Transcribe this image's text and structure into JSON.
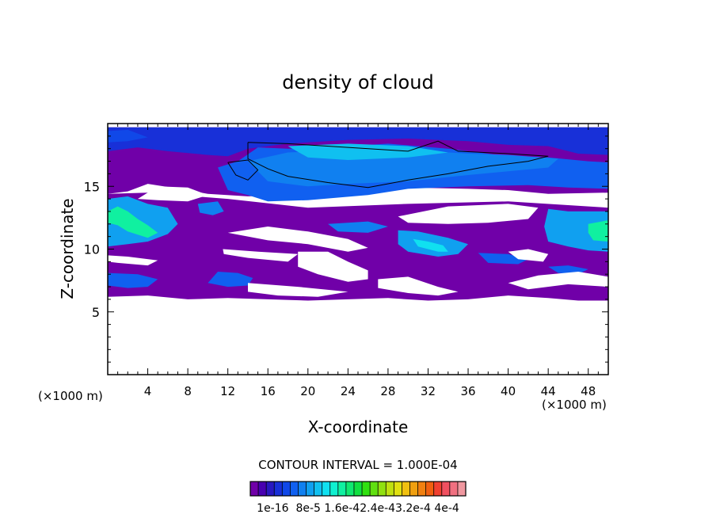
{
  "chart_data": {
    "type": "heatmap",
    "title": "density of cloud",
    "xlabel": "X-coordinate",
    "ylabel": "Z-coordinate",
    "x_unit_left": "(×1000 m)",
    "x_unit_right": "(×1000 m)",
    "xlim": [
      0,
      50
    ],
    "ylim": [
      0,
      20
    ],
    "x_ticks": [
      4,
      8,
      12,
      16,
      20,
      24,
      28,
      32,
      36,
      40,
      44,
      48
    ],
    "y_ticks": [
      5,
      10,
      15
    ],
    "contour_interval_text": "CONTOUR INTERVAL = 1.000E-04",
    "colorbar_labels": [
      "1e-16",
      "8e-5",
      "1.6e-4",
      "2.4e-4",
      "3.2e-4",
      "4e-4"
    ],
    "colorbar_label_text": "1e-16  8e-5 1.6e-42.4e-43.2e-4 4e-4",
    "colors": [
      "#7000a8",
      "#4800b0",
      "#2818c0",
      "#1830d8",
      "#1048e8",
      "#1060f0",
      "#1080f0",
      "#10a0f0",
      "#10c0f0",
      "#10e0f0",
      "#10f0d0",
      "#10f0a0",
      "#10e870",
      "#10e040",
      "#30e010",
      "#60e010",
      "#90e010",
      "#c0e010",
      "#e0e010",
      "#f0c010",
      "#f0a010",
      "#f08010",
      "#f06010",
      "#f04030",
      "#f05060",
      "#f07080",
      "#f098a0"
    ],
    "regions": [
      {
        "level": 0,
        "shape": [
          [
            0,
            14.4
          ],
          [
            2,
            14.6
          ],
          [
            4,
            15.2
          ],
          [
            8,
            14.7
          ],
          [
            10,
            14.4
          ],
          [
            14,
            14.2
          ],
          [
            18,
            14.3
          ],
          [
            24,
            14.8
          ],
          [
            30,
            14.9
          ],
          [
            36,
            14.8
          ],
          [
            40,
            14.7
          ],
          [
            44,
            14.4
          ],
          [
            50,
            14.5
          ],
          [
            50,
            19.7
          ],
          [
            0,
            19.7
          ]
        ]
      },
      {
        "level": 0,
        "shape": [
          [
            0,
            14.4
          ],
          [
            4,
            14.5
          ],
          [
            12,
            14.0
          ],
          [
            20,
            13.3
          ],
          [
            30,
            13.6
          ],
          [
            40,
            13.8
          ],
          [
            50,
            13.3
          ],
          [
            50,
            5.9
          ],
          [
            47,
            5.9
          ],
          [
            44,
            6.1
          ],
          [
            40,
            6.3
          ],
          [
            36,
            6.0
          ],
          [
            32,
            5.9
          ],
          [
            28,
            6.1
          ],
          [
            24,
            6.0
          ],
          [
            20,
            5.9
          ],
          [
            16,
            6.0
          ],
          [
            12,
            6.1
          ],
          [
            8,
            6.0
          ],
          [
            4,
            6.3
          ],
          [
            0,
            6.2
          ]
        ]
      },
      {
        "level": 3,
        "shape": [
          [
            0,
            19.7
          ],
          [
            50,
            19.7
          ],
          [
            50,
            17.5
          ],
          [
            47,
            17.6
          ],
          [
            44,
            18.2
          ],
          [
            40,
            18.3
          ],
          [
            36,
            18.6
          ],
          [
            30,
            18.8
          ],
          [
            24,
            18.7
          ],
          [
            18,
            18.4
          ],
          [
            14,
            18.0
          ],
          [
            12,
            17.4
          ],
          [
            10,
            17.5
          ],
          [
            6,
            17.8
          ],
          [
            3,
            18.1
          ],
          [
            0,
            17.8
          ]
        ]
      },
      {
        "level": 4,
        "shape": [
          [
            0,
            19.4
          ],
          [
            2,
            19.5
          ],
          [
            4,
            18.9
          ],
          [
            2,
            18.6
          ],
          [
            0,
            18.5
          ]
        ]
      },
      {
        "level": 5,
        "shape": [
          [
            11,
            16.5
          ],
          [
            13,
            17.0
          ],
          [
            15,
            18.1
          ],
          [
            18,
            18.0
          ],
          [
            22,
            18.1
          ],
          [
            28,
            18.4
          ],
          [
            34,
            18.0
          ],
          [
            40,
            17.4
          ],
          [
            44,
            17.3
          ],
          [
            48,
            17.0
          ],
          [
            50,
            16.9
          ],
          [
            50,
            14.8
          ],
          [
            46,
            14.9
          ],
          [
            42,
            15.1
          ],
          [
            36,
            15.0
          ],
          [
            30,
            14.8
          ],
          [
            26,
            14.3
          ],
          [
            20,
            13.9
          ],
          [
            16,
            13.8
          ],
          [
            14,
            14.3
          ],
          [
            12,
            14.7
          ]
        ]
      },
      {
        "level": 6,
        "shape": [
          [
            14,
            17.0
          ],
          [
            18,
            17.7
          ],
          [
            24,
            17.9
          ],
          [
            30,
            17.9
          ],
          [
            36,
            17.6
          ],
          [
            40,
            17.5
          ],
          [
            45,
            17.2
          ],
          [
            44,
            16.5
          ],
          [
            40,
            16.2
          ],
          [
            36,
            15.9
          ],
          [
            30,
            15.4
          ],
          [
            24,
            15.2
          ],
          [
            20,
            15.0
          ],
          [
            16,
            15.4
          ]
        ]
      },
      {
        "level": 8,
        "shape": [
          [
            18,
            18.2
          ],
          [
            24,
            18.4
          ],
          [
            30,
            18.2
          ],
          [
            34,
            17.7
          ],
          [
            30,
            17.3
          ],
          [
            24,
            17.1
          ],
          [
            20,
            17.3
          ]
        ]
      },
      {
        "level": 7,
        "shape": [
          [
            0,
            14.0
          ],
          [
            2,
            14.2
          ],
          [
            4,
            13.6
          ],
          [
            6,
            13.3
          ],
          [
            7,
            12.0
          ],
          [
            6,
            11.2
          ],
          [
            4,
            10.6
          ],
          [
            2,
            10.4
          ],
          [
            0,
            10.2
          ]
        ]
      },
      {
        "level": 11,
        "shape": [
          [
            0,
            13.0
          ],
          [
            1,
            13.4
          ],
          [
            2,
            13.0
          ],
          [
            3,
            12.4
          ],
          [
            4,
            11.9
          ],
          [
            5,
            11.3
          ],
          [
            4,
            10.9
          ],
          [
            2,
            11.4
          ],
          [
            1,
            11.9
          ],
          [
            0,
            12.1
          ]
        ]
      },
      {
        "level": 7,
        "shape": [
          [
            44,
            13.2
          ],
          [
            46,
            13.0
          ],
          [
            50,
            13.0
          ],
          [
            50,
            9.8
          ],
          [
            48,
            9.9
          ],
          [
            46,
            10.2
          ],
          [
            44,
            10.6
          ],
          [
            43.6,
            11.8
          ]
        ]
      },
      {
        "level": 11,
        "shape": [
          [
            48,
            12.0
          ],
          [
            50,
            12.3
          ],
          [
            50,
            10.6
          ],
          [
            48.5,
            10.7
          ],
          [
            48,
            11.3
          ]
        ]
      },
      {
        "level": 7,
        "shape": [
          [
            29,
            11.5
          ],
          [
            31,
            11.4
          ],
          [
            34,
            10.9
          ],
          [
            36,
            10.4
          ],
          [
            35,
            9.6
          ],
          [
            33,
            9.4
          ],
          [
            30,
            9.8
          ],
          [
            29,
            10.4
          ]
        ]
      },
      {
        "level": 9,
        "shape": [
          [
            30.5,
            10.8
          ],
          [
            32,
            10.6
          ],
          [
            33.5,
            10.3
          ],
          [
            34,
            9.8
          ],
          [
            33,
            9.8
          ],
          [
            31,
            10.2
          ]
        ]
      },
      {
        "level": 6,
        "shape": [
          [
            22,
            12.0
          ],
          [
            26,
            12.2
          ],
          [
            28,
            11.8
          ],
          [
            26,
            11.3
          ],
          [
            23,
            11.4
          ]
        ]
      },
      {
        "level": 5,
        "shape": [
          [
            11,
            8.2
          ],
          [
            13,
            8.1
          ],
          [
            14.5,
            7.7
          ],
          [
            14,
            7.1
          ],
          [
            12,
            7.0
          ],
          [
            10,
            7.3
          ]
        ]
      },
      {
        "level": 5,
        "shape": [
          [
            0,
            8.1
          ],
          [
            3,
            8.0
          ],
          [
            5,
            7.6
          ],
          [
            4,
            7.0
          ],
          [
            2,
            6.9
          ],
          [
            0,
            7.1
          ]
        ]
      },
      {
        "level": 5,
        "shape": [
          [
            37,
            9.7
          ],
          [
            40,
            9.6
          ],
          [
            42,
            9.2
          ],
          [
            41,
            8.8
          ],
          [
            38,
            8.9
          ]
        ]
      },
      {
        "level": 5,
        "shape": [
          [
            44,
            8.6
          ],
          [
            46,
            8.7
          ],
          [
            48,
            8.4
          ],
          [
            47,
            8.0
          ],
          [
            45,
            8.1
          ]
        ]
      },
      {
        "level": 6,
        "shape": [
          [
            9,
            13.6
          ],
          [
            11,
            13.8
          ],
          [
            11.6,
            13.0
          ],
          [
            10.5,
            12.7
          ],
          [
            9.2,
            12.9
          ]
        ]
      }
    ],
    "holes": [
      {
        "shape": [
          [
            3,
            14.0
          ],
          [
            5,
            15.0
          ],
          [
            8,
            14.9
          ],
          [
            10,
            14.3
          ],
          [
            8,
            13.8
          ],
          [
            5,
            13.9
          ]
        ]
      },
      {
        "shape": [
          [
            12,
            11.3
          ],
          [
            16,
            11.8
          ],
          [
            20,
            11.4
          ],
          [
            24,
            10.8
          ],
          [
            26,
            10.1
          ],
          [
            24,
            9.8
          ],
          [
            20,
            10.4
          ],
          [
            16,
            10.7
          ]
        ]
      },
      {
        "shape": [
          [
            19,
            9.8
          ],
          [
            22,
            9.8
          ],
          [
            24,
            9.0
          ],
          [
            26,
            8.3
          ],
          [
            26,
            7.6
          ],
          [
            24,
            7.4
          ],
          [
            21,
            8.0
          ],
          [
            19,
            8.6
          ]
        ]
      },
      {
        "shape": [
          [
            29,
            12.6
          ],
          [
            34,
            13.4
          ],
          [
            40,
            13.6
          ],
          [
            43,
            13.3
          ],
          [
            42,
            12.4
          ],
          [
            38,
            12.1
          ],
          [
            34,
            12.0
          ],
          [
            30,
            12.1
          ]
        ]
      },
      {
        "shape": [
          [
            11.5,
            10.0
          ],
          [
            15,
            9.8
          ],
          [
            19,
            9.6
          ],
          [
            18,
            9.0
          ],
          [
            14,
            9.3
          ],
          [
            11.6,
            9.6
          ]
        ]
      },
      {
        "shape": [
          [
            40,
            9.8
          ],
          [
            42,
            10.0
          ],
          [
            44,
            9.6
          ],
          [
            43.5,
            9.0
          ],
          [
            41,
            9.2
          ]
        ]
      },
      {
        "shape": [
          [
            40,
            7.3
          ],
          [
            43,
            7.9
          ],
          [
            47,
            8.2
          ],
          [
            50,
            7.8
          ],
          [
            50,
            7.0
          ],
          [
            46,
            7.2
          ],
          [
            42,
            6.8
          ]
        ]
      },
      {
        "shape": [
          [
            14,
            7.3
          ],
          [
            19,
            7.0
          ],
          [
            24,
            6.6
          ],
          [
            21,
            6.2
          ],
          [
            17,
            6.3
          ],
          [
            14,
            6.6
          ]
        ]
      },
      {
        "shape": [
          [
            27,
            7.6
          ],
          [
            30,
            7.8
          ],
          [
            33,
            7.0
          ],
          [
            35,
            6.6
          ],
          [
            33,
            6.3
          ],
          [
            30,
            6.5
          ],
          [
            27,
            6.9
          ]
        ]
      },
      {
        "shape": [
          [
            0,
            9.5
          ],
          [
            2,
            9.4
          ],
          [
            5,
            9.1
          ],
          [
            4,
            8.7
          ],
          [
            1,
            8.9
          ],
          [
            0,
            9.0
          ]
        ]
      }
    ],
    "contour_lines": [
      {
        "points": [
          [
            14,
            18.5
          ],
          [
            18,
            18.4
          ],
          [
            24,
            18.1
          ],
          [
            30,
            17.8
          ],
          [
            33,
            18.6
          ],
          [
            35,
            17.8
          ],
          [
            40,
            17.6
          ],
          [
            44,
            17.4
          ],
          [
            42,
            17.0
          ],
          [
            38,
            16.6
          ],
          [
            34,
            16.0
          ],
          [
            30,
            15.5
          ],
          [
            26,
            14.9
          ],
          [
            22,
            15.3
          ],
          [
            18,
            15.8
          ],
          [
            16,
            16.4
          ],
          [
            14,
            17.2
          ],
          [
            14,
            18.5
          ]
        ]
      },
      {
        "points": [
          [
            12,
            16.9
          ],
          [
            14,
            17.1
          ],
          [
            15,
            16.3
          ],
          [
            14,
            15.5
          ],
          [
            12.8,
            15.9
          ],
          [
            12,
            16.9
          ]
        ]
      }
    ]
  }
}
